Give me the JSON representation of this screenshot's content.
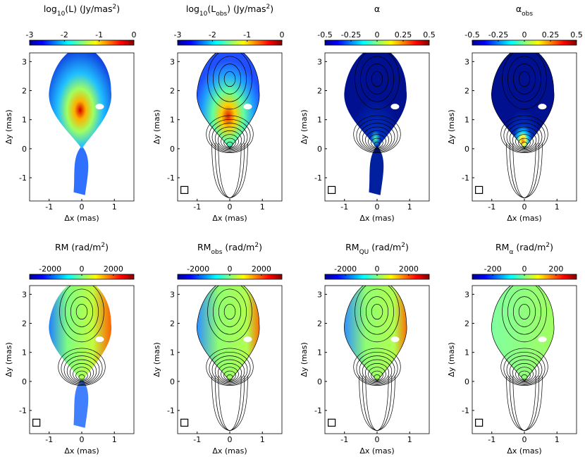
{
  "chart_data": [
    {
      "type": "heatmap",
      "title_parts": [
        {
          "text": "log"
        },
        {
          "text": "10",
          "sub": true
        },
        {
          "text": "(L) (Jy/mas"
        },
        {
          "text": "2",
          "sup": true
        },
        {
          "text": ")"
        }
      ],
      "colorbar": {
        "lim": [
          -3,
          0
        ],
        "ticks": [
          -3,
          -2,
          -1,
          0
        ]
      },
      "xlabel": "Δx (mas)",
      "ylabel": "Δy (mas)",
      "xlim": [
        -1.6,
        1.6
      ],
      "xticks": [
        -1,
        0,
        1
      ],
      "ylim": [
        -1.8,
        3.3
      ],
      "yticks": [
        -1,
        0,
        1,
        2,
        3
      ]
    },
    {
      "type": "heatmap",
      "title_parts": [
        {
          "text": "log"
        },
        {
          "text": "10",
          "sub": true
        },
        {
          "text": "(L"
        },
        {
          "text": "obs",
          "sub": true
        },
        {
          "text": ") (Jy/mas"
        },
        {
          "text": "2",
          "sup": true
        },
        {
          "text": ")"
        }
      ],
      "colorbar": {
        "lim": [
          -3,
          0
        ],
        "ticks": [
          -3,
          -2,
          -1,
          0
        ]
      },
      "xlabel": "Δx (mas)",
      "ylabel": "Δy (mas)",
      "xlim": [
        -1.6,
        1.6
      ],
      "xticks": [
        -1,
        0,
        1
      ],
      "ylim": [
        -1.8,
        3.3
      ],
      "yticks": [
        -1,
        0,
        1,
        2,
        3
      ]
    },
    {
      "type": "heatmap",
      "title_parts": [
        {
          "text": "α"
        }
      ],
      "colorbar": {
        "lim": [
          -0.5,
          0.5
        ],
        "ticks": [
          -0.5,
          -0.25,
          0,
          0.25,
          0.5
        ]
      },
      "xlabel": "Δx (mas)",
      "ylabel": "Δy (mas)",
      "xlim": [
        -1.6,
        1.6
      ],
      "xticks": [
        -1,
        0,
        1
      ],
      "ylim": [
        -1.8,
        3.3
      ],
      "yticks": [
        -1,
        0,
        1,
        2,
        3
      ]
    },
    {
      "type": "heatmap",
      "title_parts": [
        {
          "text": "α"
        },
        {
          "text": "obs",
          "sub": true
        }
      ],
      "colorbar": {
        "lim": [
          -0.5,
          0.5
        ],
        "ticks": [
          -0.5,
          -0.25,
          0,
          0.25,
          0.5
        ]
      },
      "xlabel": "Δx (mas)",
      "ylabel": "Δy (mas)",
      "xlim": [
        -1.6,
        1.6
      ],
      "xticks": [
        -1,
        0,
        1
      ],
      "ylim": [
        -1.8,
        3.3
      ],
      "yticks": [
        -1,
        0,
        1,
        2,
        3
      ]
    },
    {
      "type": "heatmap",
      "title_parts": [
        {
          "text": "RM  (rad/m"
        },
        {
          "text": "2",
          "sup": true
        },
        {
          "text": ")"
        }
      ],
      "colorbar": {
        "lim": [
          -3300,
          3300
        ],
        "ticks": [
          -2000,
          0,
          2000
        ]
      },
      "xlabel": "Δx (mas)",
      "ylabel": "Δy (mas)",
      "xlim": [
        -1.6,
        1.6
      ],
      "xticks": [
        -1,
        0,
        1
      ],
      "ylim": [
        -1.8,
        3.3
      ],
      "yticks": [
        -1,
        0,
        1,
        2,
        3
      ]
    },
    {
      "type": "heatmap",
      "title_parts": [
        {
          "text": "RM"
        },
        {
          "text": "obs",
          "sub": true
        },
        {
          "text": " (rad/m"
        },
        {
          "text": "2",
          "sup": true
        },
        {
          "text": ")"
        }
      ],
      "colorbar": {
        "lim": [
          -3300,
          3300
        ],
        "ticks": [
          -2000,
          0,
          2000
        ]
      },
      "xlabel": "Δx (mas)",
      "ylabel": "Δy (mas)",
      "xlim": [
        -1.6,
        1.6
      ],
      "xticks": [
        -1,
        0,
        1
      ],
      "ylim": [
        -1.8,
        3.3
      ],
      "yticks": [
        -1,
        0,
        1,
        2,
        3
      ]
    },
    {
      "type": "heatmap",
      "title_parts": [
        {
          "text": "RM"
        },
        {
          "text": "QU",
          "sub": true
        },
        {
          "text": " (rad/m"
        },
        {
          "text": "2",
          "sup": true
        },
        {
          "text": ")"
        }
      ],
      "colorbar": {
        "lim": [
          -3300,
          3300
        ],
        "ticks": [
          -2000,
          0,
          2000
        ]
      },
      "xlabel": "Δx (mas)",
      "ylabel": "Δy (mas)",
      "xlim": [
        -1.6,
        1.6
      ],
      "xticks": [
        -1,
        0,
        1
      ],
      "ylim": [
        -1.8,
        3.3
      ],
      "yticks": [
        -1,
        0,
        1,
        2,
        3
      ]
    },
    {
      "type": "heatmap",
      "title_parts": [
        {
          "text": "RM"
        },
        {
          "text": "α",
          "sub": true
        },
        {
          "text": " (rad/m"
        },
        {
          "text": "2",
          "sup": true
        },
        {
          "text": ")"
        }
      ],
      "colorbar": {
        "lim": [
          -330,
          330
        ],
        "ticks": [
          -200,
          0,
          200
        ]
      },
      "xlabel": "Δx (mas)",
      "ylabel": "Δy (mas)",
      "xlim": [
        -1.6,
        1.6
      ],
      "xticks": [
        -1,
        0,
        1
      ],
      "ylim": [
        -1.8,
        3.3
      ],
      "yticks": [
        -1,
        0,
        1,
        2,
        3
      ]
    }
  ]
}
